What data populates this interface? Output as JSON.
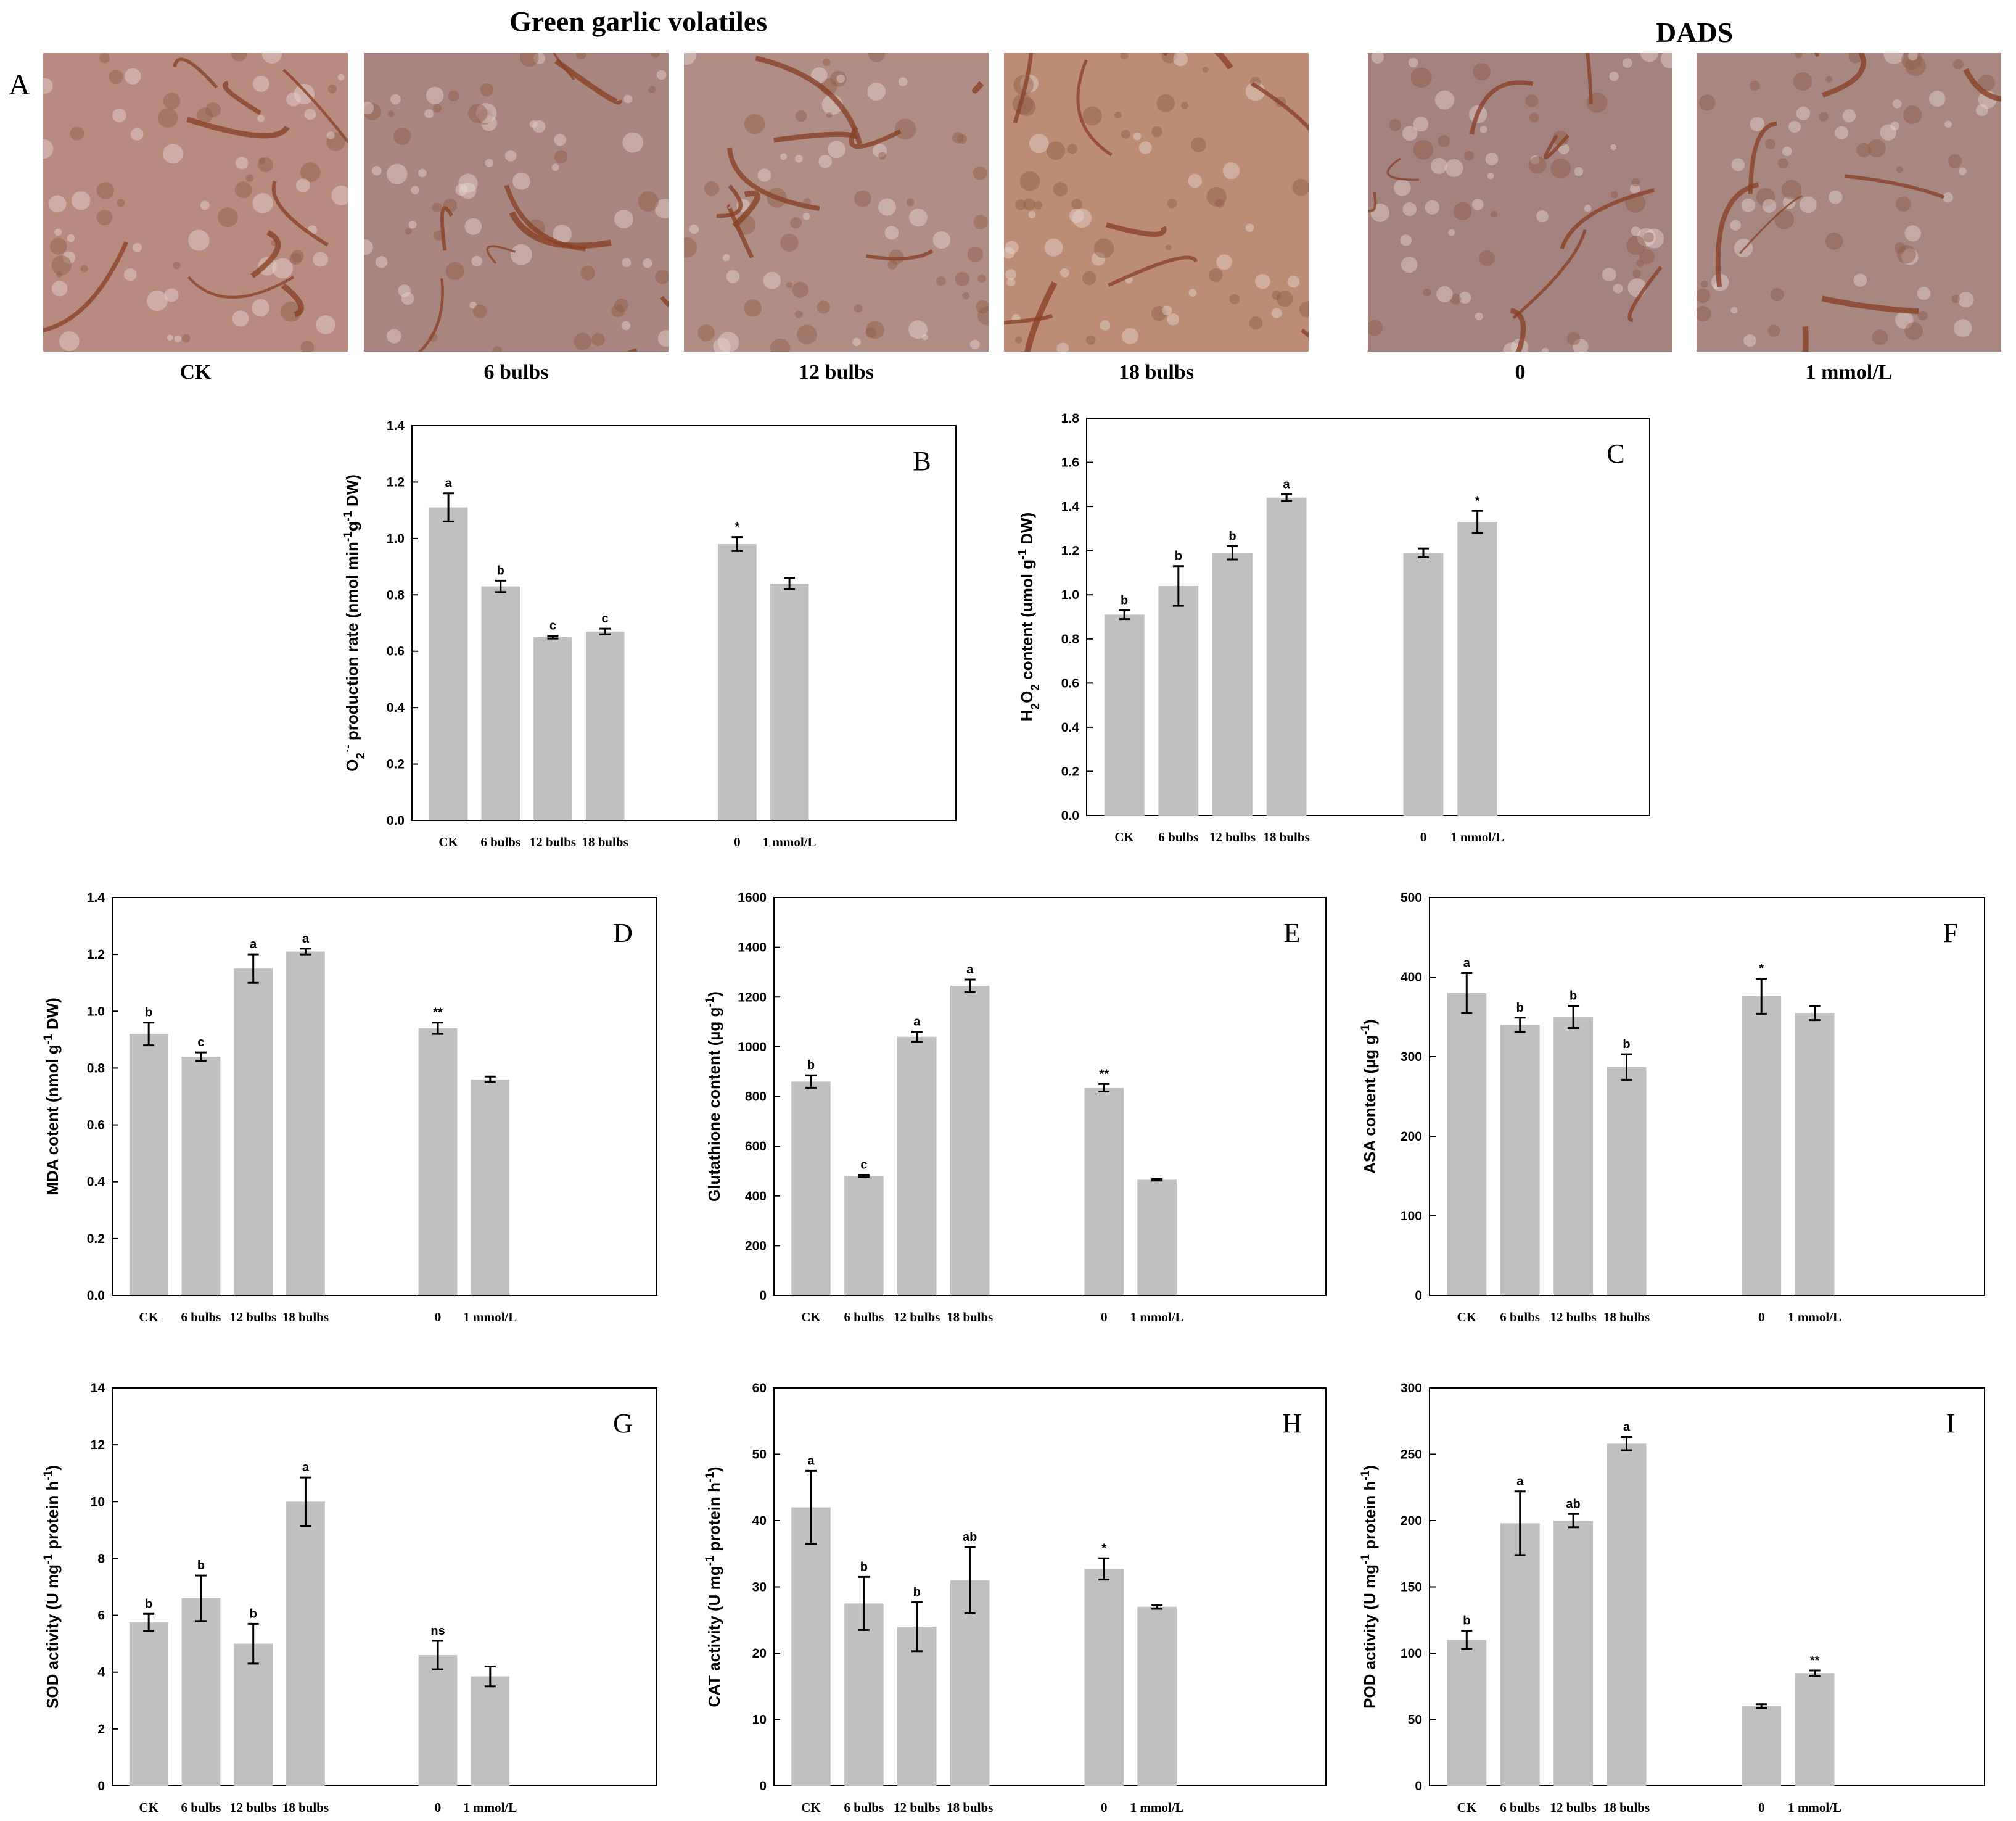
{
  "panel_a": {
    "letter": "A",
    "headings": {
      "left": "Green garlic volatiles",
      "right": "DADS"
    },
    "photos": [
      {
        "label": "CK",
        "tone": "#b98a80"
      },
      {
        "label": "6 bulbs",
        "tone": "#a9857f"
      },
      {
        "label": "12 bulbs",
        "tone": "#b08e86"
      },
      {
        "label": "18 bulbs",
        "tone": "#bc8c77"
      },
      {
        "label": "0",
        "tone": "#a4827d"
      },
      {
        "label": "1 mmol/L",
        "tone": "#a78780"
      }
    ]
  },
  "chart_data": [
    {
      "panel": "B",
      "type": "bar",
      "ylabel_parts": [
        "O",
        "2",
        "·-",
        " production rate (nmol min",
        "-1",
        "g",
        "-1",
        " DW)"
      ],
      "ylim": [
        0,
        1.4
      ],
      "yticks": [
        "0.0",
        "0.2",
        "0.4",
        "0.6",
        "0.8",
        "1.0",
        "1.2",
        "1.4"
      ],
      "categories": [
        "CK",
        "6 bulbs",
        "12 bulbs",
        "18 bulbs",
        "0",
        "1 mmol/L"
      ],
      "values": [
        1.11,
        0.83,
        0.65,
        0.67,
        0.98,
        0.84
      ],
      "errors": [
        0.05,
        0.02,
        0.005,
        0.01,
        0.025,
        0.02
      ],
      "labels": [
        "a",
        "b",
        "c",
        "c",
        "*",
        ""
      ]
    },
    {
      "panel": "C",
      "type": "bar",
      "ylabel_parts": [
        "H",
        "2",
        "O",
        "2",
        " content (umol g",
        "-1",
        " DW)"
      ],
      "ylim": [
        0,
        1.8
      ],
      "yticks": [
        "0.0",
        "0.2",
        "0.4",
        "0.6",
        "0.8",
        "1.0",
        "1.2",
        "1.4",
        "1.6",
        "1.8"
      ],
      "categories": [
        "CK",
        "6 bulbs",
        "12 bulbs",
        "18 bulbs",
        "0",
        "1 mmol/L"
      ],
      "values": [
        0.91,
        1.04,
        1.19,
        1.44,
        1.19,
        1.33
      ],
      "errors": [
        0.02,
        0.09,
        0.03,
        0.015,
        0.02,
        0.05
      ],
      "labels": [
        "b",
        "b",
        "b",
        "a",
        "",
        "*"
      ]
    },
    {
      "panel": "D",
      "type": "bar",
      "ylabel_parts": [
        "MDA cotent (nmol g",
        "-1",
        " DW)"
      ],
      "ylim": [
        0,
        1.4
      ],
      "yticks": [
        "0.0",
        "0.2",
        "0.4",
        "0.6",
        "0.8",
        "1.0",
        "1.2",
        "1.4"
      ],
      "categories": [
        "CK",
        "6 bulbs",
        "12 bulbs",
        "18 bulbs",
        "0",
        "1 mmol/L"
      ],
      "values": [
        0.92,
        0.84,
        1.15,
        1.21,
        0.94,
        0.76
      ],
      "errors": [
        0.04,
        0.015,
        0.05,
        0.01,
        0.02,
        0.01
      ],
      "labels": [
        "b",
        "c",
        "a",
        "a",
        "**",
        ""
      ]
    },
    {
      "panel": "E",
      "type": "bar",
      "ylabel_parts": [
        "Glutathione content (µg g",
        "-1",
        ")"
      ],
      "ylim": [
        0,
        1600
      ],
      "yticks": [
        "0",
        "200",
        "400",
        "600",
        "800",
        "1000",
        "1200",
        "1400",
        "1600"
      ],
      "categories": [
        "CK",
        "6 bulbs",
        "12 bulbs",
        "18 bulbs",
        "0",
        "1 mmol/L"
      ],
      "values": [
        860,
        480,
        1040,
        1245,
        835,
        465
      ],
      "errors": [
        25,
        5,
        20,
        25,
        15,
        3
      ],
      "labels": [
        "b",
        "c",
        "a",
        "a",
        "**",
        ""
      ]
    },
    {
      "panel": "F",
      "type": "bar",
      "ylabel_parts": [
        "ASA content (µg g",
        "-1",
        ")"
      ],
      "ylim": [
        0,
        500
      ],
      "yticks": [
        "0",
        "100",
        "200",
        "300",
        "400",
        "500"
      ],
      "categories": [
        "CK",
        "6 bulbs",
        "12 bulbs",
        "18 bulbs",
        "0",
        "1 mmol/L"
      ],
      "values": [
        380,
        340,
        350,
        287,
        376,
        355
      ],
      "errors": [
        25,
        9,
        14,
        16,
        22,
        9
      ],
      "labels": [
        "a",
        "b",
        "b",
        "b",
        "*",
        ""
      ]
    },
    {
      "panel": "G",
      "type": "bar",
      "ylabel_parts": [
        "SOD activity (U mg",
        "-1",
        " protein h",
        "-1",
        ")"
      ],
      "ylim": [
        0,
        14
      ],
      "yticks": [
        "0",
        "2",
        "4",
        "6",
        "8",
        "10",
        "12",
        "14"
      ],
      "categories": [
        "CK",
        "6 bulbs",
        "12 bulbs",
        "18 bulbs",
        "0",
        "1 mmol/L"
      ],
      "values": [
        5.75,
        6.6,
        5.0,
        10.0,
        4.6,
        3.85
      ],
      "errors": [
        0.3,
        0.8,
        0.7,
        0.85,
        0.5,
        0.35
      ],
      "labels": [
        "b",
        "b",
        "b",
        "a",
        "ns",
        ""
      ]
    },
    {
      "panel": "H",
      "type": "bar",
      "ylabel_parts": [
        "CAT activity (U mg",
        "-1",
        " protein h",
        "-1",
        ")"
      ],
      "ylim": [
        0,
        60
      ],
      "yticks": [
        "0",
        "10",
        "20",
        "30",
        "40",
        "50",
        "60"
      ],
      "categories": [
        "CK",
        "6 bulbs",
        "12 bulbs",
        "18 bulbs",
        "0",
        "1 mmol/L"
      ],
      "values": [
        42,
        27.5,
        24,
        31,
        32.7,
        27
      ],
      "errors": [
        5.5,
        4,
        3.7,
        5,
        1.6,
        0.3
      ],
      "labels": [
        "a",
        "b",
        "b",
        "ab",
        "*",
        ""
      ]
    },
    {
      "panel": "I",
      "type": "bar",
      "ylabel_parts": [
        "POD activity (U mg",
        "-1",
        " protein h",
        "-1",
        ")"
      ],
      "ylim": [
        0,
        300
      ],
      "yticks": [
        "0",
        "50",
        "100",
        "150",
        "200",
        "250",
        "300"
      ],
      "categories": [
        "CK",
        "6 bulbs",
        "12 bulbs",
        "18 bulbs",
        "0",
        "1 mmol/L"
      ],
      "values": [
        110,
        198,
        200,
        258,
        60,
        85
      ],
      "errors": [
        7,
        24,
        5,
        5,
        1.5,
        2
      ],
      "labels": [
        "b",
        "a",
        "ab",
        "a",
        "",
        "**"
      ]
    }
  ]
}
